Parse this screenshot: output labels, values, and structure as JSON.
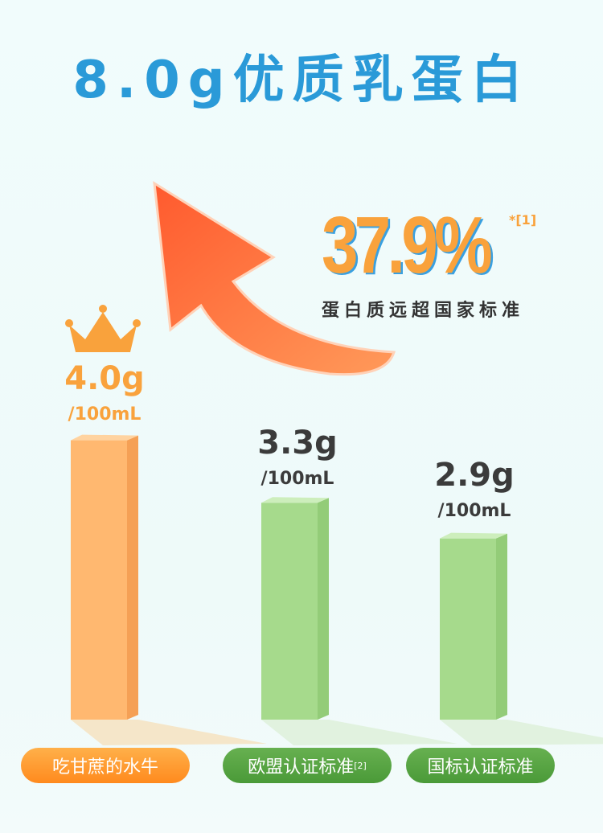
{
  "title": "8.0g优质乳蛋白",
  "highlight": {
    "value": "37.9%",
    "footnote": "*[1]",
    "caption": "蛋白质远超国家标准"
  },
  "colors": {
    "title": "#2a9ad8",
    "orange": "#f9a23c",
    "green": "#5da546",
    "green_bar": "#a6da8c",
    "orange_bar": "#ffb870"
  },
  "chart_data": {
    "type": "bar",
    "categories": [
      "吃甘蔗的水牛",
      "欧盟认证标准",
      "国标认证标准"
    ],
    "category_footnotes": [
      "",
      "[2]",
      ""
    ],
    "values": [
      4.0,
      3.3,
      2.9
    ],
    "value_labels": [
      "4.0g",
      "3.3g",
      "2.9g"
    ],
    "unit": "/100mL",
    "highlighted_index": 0
  }
}
